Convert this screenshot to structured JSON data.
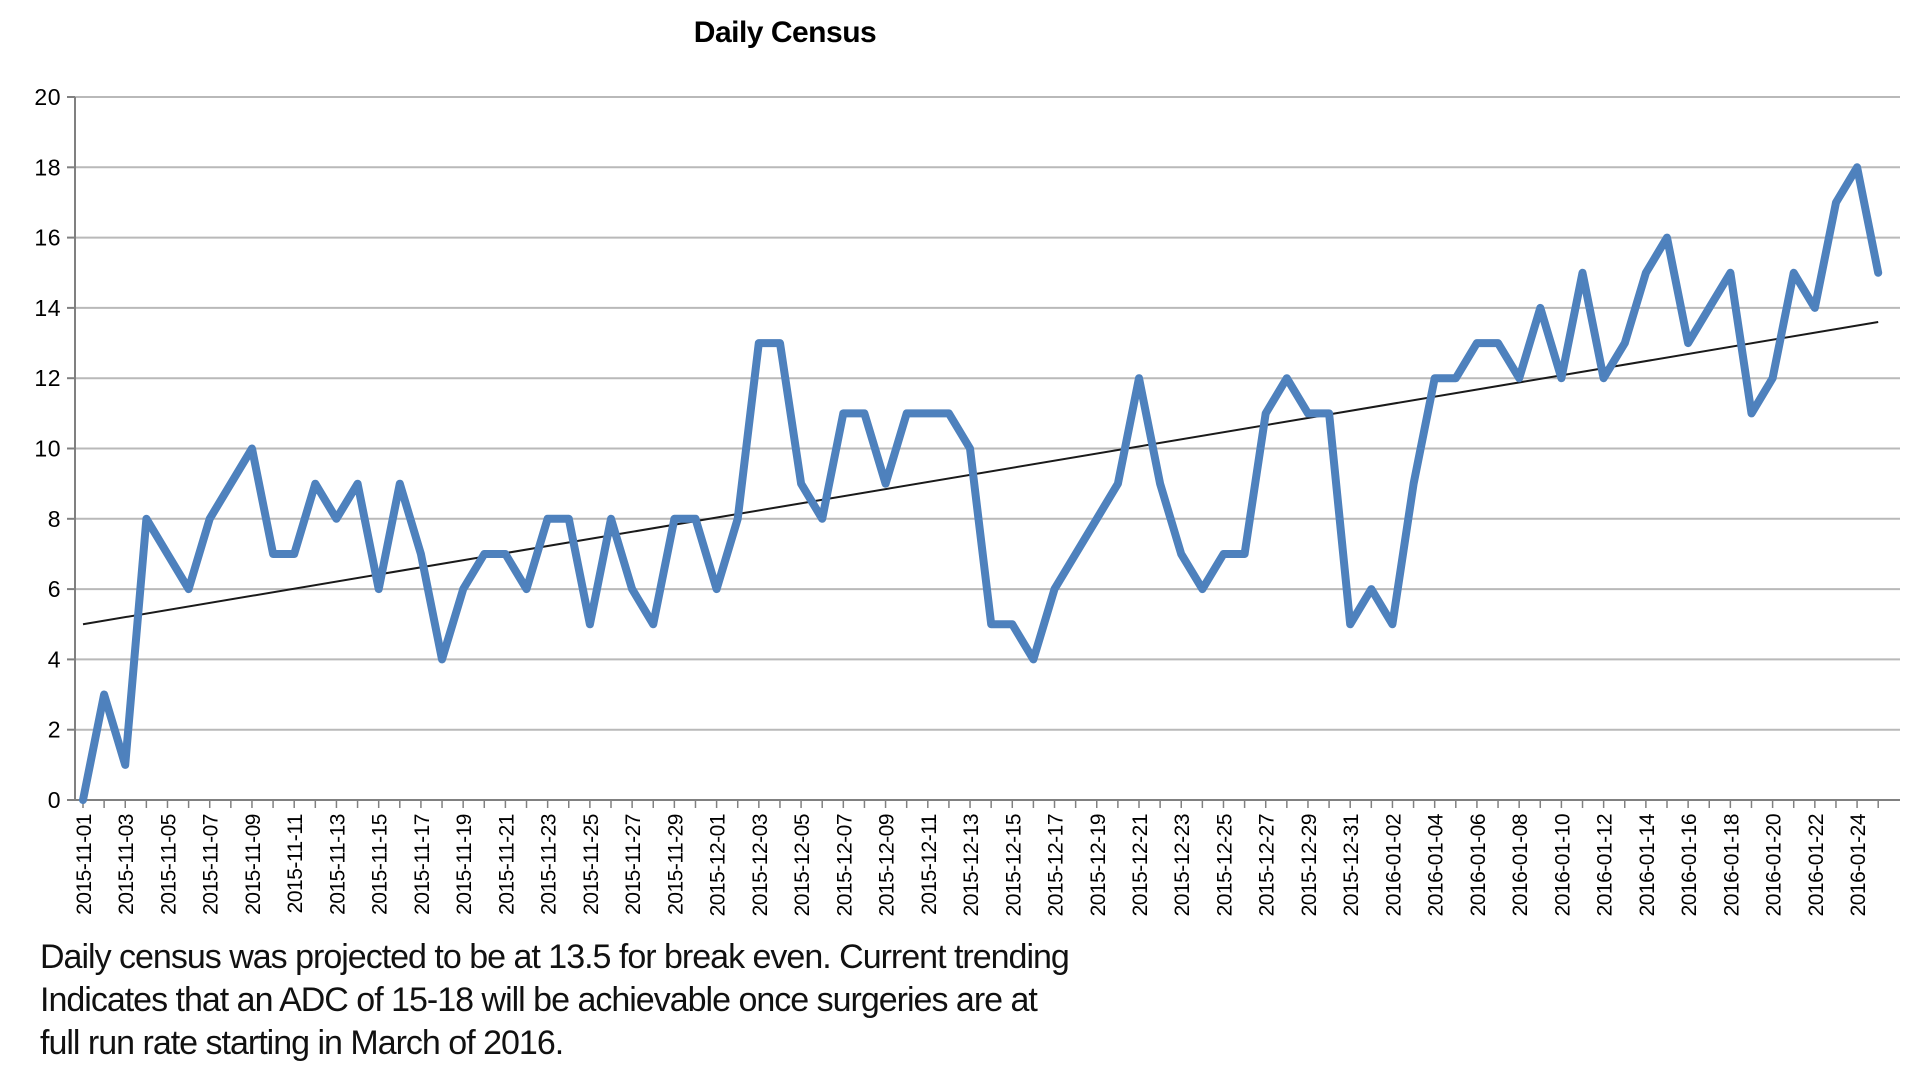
{
  "title": "Daily Census",
  "annotation": {
    "line1": "Daily census was projected to be at 13.5 for break even. Current trending",
    "line2": "Indicates that an ADC of 15-18 will be achievable once surgeries are at",
    "line3": "full run rate starting in March of 2016."
  },
  "colors": {
    "series": "#4E81BD",
    "trendline": "#1a1a1a",
    "gridline": "#B9B9B9",
    "axis": "#808080",
    "text": "#000000",
    "background": "#ffffff"
  },
  "chart_data": {
    "type": "line",
    "title": "Daily Census",
    "xlabel": "",
    "ylabel": "",
    "ylim": [
      0,
      20
    ],
    "ytick_step": 2,
    "y_ticks": [
      0,
      2,
      4,
      6,
      8,
      10,
      12,
      14,
      16,
      18,
      20
    ],
    "grid": true,
    "legend": "none",
    "xtick_label_step_days": 2,
    "xtick_labels": [
      "2015-11-01",
      "2015-11-03",
      "2015-11-05",
      "2015-11-07",
      "2015-11-09",
      "2015-11-11",
      "2015-11-13",
      "2015-11-15",
      "2015-11-17",
      "2015-11-19",
      "2015-11-21",
      "2015-11-23",
      "2015-11-25",
      "2015-11-27",
      "2015-11-29",
      "2015-12-01",
      "2015-12-03",
      "2015-12-05",
      "2015-12-07",
      "2015-12-09",
      "2015-12-11",
      "2015-12-13",
      "2015-12-15",
      "2015-12-17",
      "2015-12-19",
      "2015-12-21",
      "2015-12-23",
      "2015-12-25",
      "2015-12-27",
      "2015-12-29",
      "2015-12-31",
      "2016-01-02",
      "2016-01-04",
      "2016-01-06",
      "2016-01-08",
      "2016-01-10",
      "2016-01-12",
      "2016-01-14",
      "2016-01-16",
      "2016-01-18",
      "2016-01-20",
      "2016-01-22",
      "2016-01-24"
    ],
    "dates": [
      "2015-11-01",
      "2015-11-02",
      "2015-11-03",
      "2015-11-04",
      "2015-11-05",
      "2015-11-06",
      "2015-11-07",
      "2015-11-08",
      "2015-11-09",
      "2015-11-10",
      "2015-11-11",
      "2015-11-12",
      "2015-11-13",
      "2015-11-14",
      "2015-11-15",
      "2015-11-16",
      "2015-11-17",
      "2015-11-18",
      "2015-11-19",
      "2015-11-20",
      "2015-11-21",
      "2015-11-22",
      "2015-11-23",
      "2015-11-24",
      "2015-11-25",
      "2015-11-26",
      "2015-11-27",
      "2015-11-28",
      "2015-11-29",
      "2015-11-30",
      "2015-12-01",
      "2015-12-02",
      "2015-12-03",
      "2015-12-04",
      "2015-12-05",
      "2015-12-06",
      "2015-12-07",
      "2015-12-08",
      "2015-12-09",
      "2015-12-10",
      "2015-12-11",
      "2015-12-12",
      "2015-12-13",
      "2015-12-14",
      "2015-12-15",
      "2015-12-16",
      "2015-12-17",
      "2015-12-18",
      "2015-12-19",
      "2015-12-20",
      "2015-12-21",
      "2015-12-22",
      "2015-12-23",
      "2015-12-24",
      "2015-12-25",
      "2015-12-26",
      "2015-12-27",
      "2015-12-28",
      "2015-12-29",
      "2015-12-30",
      "2015-12-31",
      "2016-01-01",
      "2016-01-02",
      "2016-01-03",
      "2016-01-04",
      "2016-01-05",
      "2016-01-06",
      "2016-01-07",
      "2016-01-08",
      "2016-01-09",
      "2016-01-10",
      "2016-01-11",
      "2016-01-12",
      "2016-01-13",
      "2016-01-14",
      "2016-01-15",
      "2016-01-16",
      "2016-01-17",
      "2016-01-18",
      "2016-01-19",
      "2016-01-20",
      "2016-01-21",
      "2016-01-22",
      "2016-01-23",
      "2016-01-24",
      "2016-01-25"
    ],
    "values": [
      0,
      3,
      1,
      8,
      7,
      6,
      8,
      9,
      10,
      7,
      7,
      9,
      8,
      9,
      6,
      9,
      7,
      4,
      6,
      7,
      7,
      6,
      8,
      8,
      5,
      8,
      6,
      5,
      8,
      8,
      6,
      8,
      13,
      13,
      9,
      8,
      11,
      11,
      9,
      11,
      11,
      11,
      10,
      5,
      5,
      4,
      6,
      7,
      8,
      9,
      12,
      9,
      7,
      6,
      7,
      7,
      11,
      12,
      11,
      11,
      5,
      6,
      5,
      9,
      12,
      12,
      13,
      13,
      12,
      14,
      12,
      15,
      12,
      13,
      15,
      16,
      13,
      14,
      15,
      11,
      12,
      15,
      14,
      17,
      18,
      15
    ],
    "trendline": {
      "start_day_index": 0,
      "start_value": 5.0,
      "end_day_index": 85,
      "end_value": 13.6
    }
  }
}
